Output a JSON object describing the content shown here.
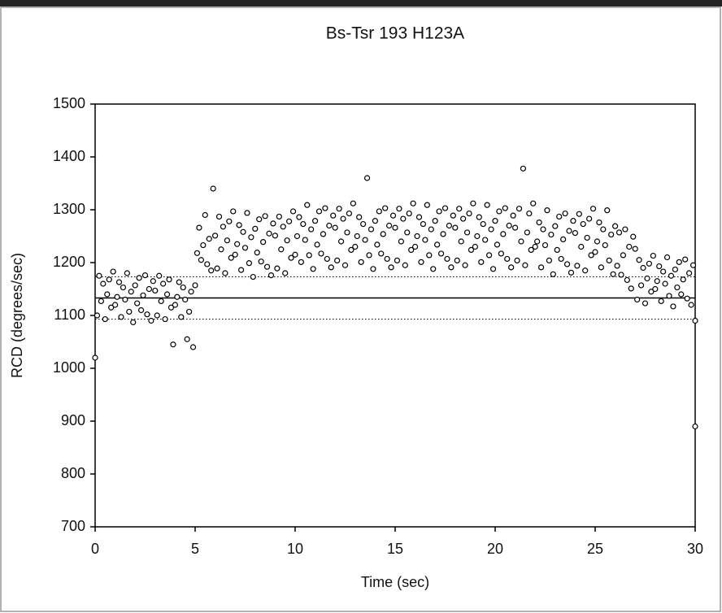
{
  "chart_data": {
    "type": "scatter",
    "title": "Bs-Tsr 193 H123A",
    "x_label": "Time (sec)",
    "y_label": "RCD (degrees/sec)",
    "xlim": [
      0,
      30
    ],
    "xticks": [
      0,
      5,
      10,
      15,
      20,
      25,
      30
    ],
    "ylim": [
      700,
      1500
    ],
    "yticks": [
      700,
      800,
      900,
      1000,
      1100,
      1200,
      1300,
      1400,
      1500
    ],
    "marker_color": "#000000",
    "reference_lines": [
      {
        "value": 1133,
        "style": "solid"
      },
      {
        "value": 1173,
        "style": "dotted"
      },
      {
        "value": 1093,
        "style": "dotted"
      }
    ],
    "x": [
      0,
      0.1,
      0.2,
      0.3,
      0.4,
      0.5,
      0.6,
      0.7,
      0.8,
      0.9,
      1,
      1.1,
      1.2,
      1.3,
      1.4,
      1.5,
      1.6,
      1.7,
      1.8,
      1.9,
      2,
      2.1,
      2.2,
      2.3,
      2.4,
      2.5,
      2.6,
      2.7,
      2.8,
      2.9,
      3,
      3.1,
      3.2,
      3.3,
      3.4,
      3.5,
      3.6,
      3.7,
      3.8,
      3.9,
      4,
      4.1,
      4.2,
      4.3,
      4.4,
      4.5,
      4.6,
      4.7,
      4.8,
      4.9,
      5,
      5.1,
      5.2,
      5.3,
      5.4,
      5.5,
      5.6,
      5.7,
      5.8,
      5.9,
      6,
      6.1,
      6.2,
      6.3,
      6.4,
      6.5,
      6.6,
      6.7,
      6.8,
      6.9,
      7,
      7.1,
      7.2,
      7.3,
      7.4,
      7.5,
      7.6,
      7.7,
      7.8,
      7.9,
      8,
      8.1,
      8.2,
      8.3,
      8.4,
      8.5,
      8.6,
      8.7,
      8.8,
      8.9,
      9,
      9.1,
      9.2,
      9.3,
      9.4,
      9.5,
      9.6,
      9.7,
      9.8,
      9.9,
      10,
      10.1,
      10.2,
      10.3,
      10.4,
      10.5,
      10.6,
      10.7,
      10.8,
      10.9,
      11,
      11.1,
      11.2,
      11.3,
      11.4,
      11.5,
      11.6,
      11.7,
      11.8,
      11.9,
      12,
      12.1,
      12.2,
      12.3,
      12.4,
      12.5,
      12.6,
      12.7,
      12.8,
      12.9,
      13,
      13.1,
      13.2,
      13.3,
      13.4,
      13.5,
      13.6,
      13.7,
      13.8,
      13.9,
      14,
      14.1,
      14.2,
      14.3,
      14.4,
      14.5,
      14.6,
      14.7,
      14.8,
      14.9,
      15,
      15.1,
      15.2,
      15.3,
      15.4,
      15.5,
      15.6,
      15.7,
      15.8,
      15.9,
      16,
      16.1,
      16.2,
      16.3,
      16.4,
      16.5,
      16.6,
      16.7,
      16.8,
      16.9,
      17,
      17.1,
      17.2,
      17.3,
      17.4,
      17.5,
      17.6,
      17.7,
      17.8,
      17.9,
      18,
      18.1,
      18.2,
      18.3,
      18.4,
      18.5,
      18.6,
      18.7,
      18.8,
      18.9,
      19,
      19.1,
      19.2,
      19.3,
      19.4,
      19.5,
      19.6,
      19.7,
      19.8,
      19.9,
      20,
      20.1,
      20.2,
      20.3,
      20.4,
      20.5,
      20.6,
      20.7,
      20.8,
      20.9,
      21,
      21.1,
      21.2,
      21.3,
      21.4,
      21.5,
      21.6,
      21.7,
      21.8,
      21.9,
      22,
      22.1,
      22.2,
      22.3,
      22.4,
      22.5,
      22.6,
      22.7,
      22.8,
      22.9,
      23,
      23.1,
      23.2,
      23.3,
      23.4,
      23.5,
      23.6,
      23.7,
      23.8,
      23.9,
      24,
      24.1,
      24.2,
      24.3,
      24.4,
      24.5,
      24.6,
      24.7,
      24.8,
      24.9,
      25,
      25.1,
      25.2,
      25.3,
      25.4,
      25.5,
      25.6,
      25.7,
      25.8,
      25.9,
      26,
      26.1,
      26.2,
      26.3,
      26.4,
      26.5,
      26.6,
      26.7,
      26.8,
      26.9,
      27,
      27.1,
      27.2,
      27.3,
      27.4,
      27.5,
      27.6,
      27.7,
      27.8,
      27.9,
      28,
      28.1,
      28.2,
      28.3,
      28.4,
      28.5,
      28.6,
      28.7,
      28.8,
      28.9,
      29,
      29.1,
      29.2,
      29.3,
      29.4,
      29.5,
      29.6,
      29.7,
      29.8,
      29.9,
      30,
      30
    ],
    "values": [
      1020,
      1100,
      1175,
      1127,
      1160,
      1093,
      1140,
      1168,
      1115,
      1183,
      1120,
      1135,
      1163,
      1097,
      1153,
      1130,
      1180,
      1107,
      1145,
      1087,
      1157,
      1123,
      1171,
      1110,
      1138,
      1176,
      1102,
      1150,
      1090,
      1165,
      1147,
      1100,
      1175,
      1127,
      1160,
      1093,
      1140,
      1168,
      1115,
      1045,
      1120,
      1135,
      1163,
      1097,
      1153,
      1130,
      1055,
      1107,
      1145,
      1040,
      1157,
      1218,
      1266,
      1205,
      1233,
      1290,
      1197,
      1245,
      1185,
      1340,
      1251,
      1189,
      1287,
      1225,
      1268,
      1180,
      1242,
      1278,
      1209,
      1297,
      1215,
      1235,
      1271,
      1186,
      1258,
      1228,
      1294,
      1199,
      1248,
      1173,
      1264,
      1219,
      1282,
      1202,
      1239,
      1288,
      1192,
      1255,
      1176,
      1274,
      1251,
      1189,
      1287,
      1225,
      1268,
      1180,
      1242,
      1278,
      1209,
      1297,
      1215,
      1250,
      1286,
      1201,
      1273,
      1243,
      1309,
      1214,
      1263,
      1188,
      1279,
      1234,
      1297,
      1217,
      1254,
      1303,
      1207,
      1270,
      1191,
      1289,
      1266,
      1204,
      1302,
      1240,
      1283,
      1195,
      1257,
      1293,
      1224,
      1312,
      1230,
      1250,
      1286,
      1201,
      1273,
      1243,
      1360,
      1214,
      1263,
      1188,
      1279,
      1234,
      1297,
      1217,
      1254,
      1303,
      1207,
      1270,
      1191,
      1289,
      1266,
      1204,
      1302,
      1240,
      1283,
      1195,
      1257,
      1293,
      1224,
      1312,
      1230,
      1250,
      1286,
      1201,
      1273,
      1243,
      1309,
      1214,
      1263,
      1188,
      1279,
      1234,
      1297,
      1217,
      1254,
      1303,
      1207,
      1270,
      1191,
      1289,
      1266,
      1204,
      1302,
      1240,
      1283,
      1195,
      1257,
      1293,
      1224,
      1312,
      1230,
      1250,
      1286,
      1201,
      1273,
      1243,
      1309,
      1214,
      1263,
      1188,
      1279,
      1234,
      1297,
      1217,
      1254,
      1303,
      1207,
      1270,
      1191,
      1289,
      1266,
      1204,
      1302,
      1240,
      1378,
      1195,
      1257,
      1293,
      1224,
      1312,
      1230,
      1240,
      1276,
      1191,
      1263,
      1233,
      1299,
      1204,
      1253,
      1178,
      1269,
      1224,
      1287,
      1207,
      1244,
      1293,
      1197,
      1260,
      1181,
      1279,
      1256,
      1194,
      1292,
      1230,
      1273,
      1185,
      1247,
      1283,
      1214,
      1302,
      1220,
      1240,
      1276,
      1191,
      1263,
      1233,
      1299,
      1204,
      1253,
      1178,
      1269,
      1194,
      1257,
      1177,
      1214,
      1263,
      1167,
      1230,
      1151,
      1249,
      1226,
      1130,
      1205,
      1157,
      1190,
      1123,
      1170,
      1198,
      1145,
      1213,
      1150,
      1165,
      1193,
      1127,
      1183,
      1160,
      1210,
      1137,
      1175,
      1117,
      1187,
      1153,
      1201,
      1140,
      1168,
      1206,
      1132,
      1180,
      1120,
      1195,
      890,
      1090
    ]
  }
}
